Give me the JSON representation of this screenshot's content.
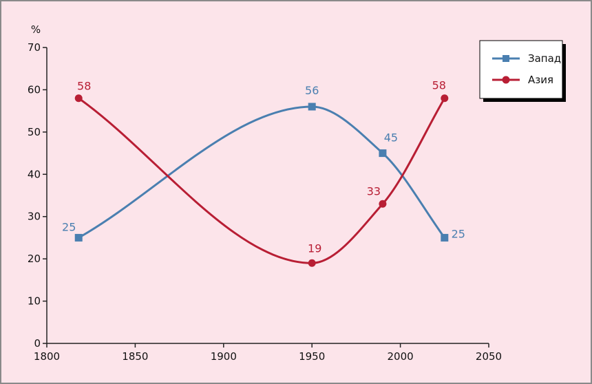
{
  "chart_data": {
    "type": "line",
    "ylabel": "%",
    "xlabel": "",
    "xlim": [
      1800,
      2050
    ],
    "ylim": [
      0,
      70
    ],
    "x_ticks": [
      1800,
      1850,
      1900,
      1950,
      2000,
      2050
    ],
    "y_ticks": [
      0,
      10,
      20,
      30,
      40,
      50,
      60,
      70
    ],
    "grid": false,
    "legend_position": "top-right",
    "series": [
      {
        "name": "Запад",
        "color": "#4a7fb0",
        "marker": "square",
        "x": [
          1818,
          1950,
          1990,
          2025
        ],
        "values": [
          25,
          56,
          45,
          25
        ],
        "labels": [
          "25",
          "56",
          "45",
          "25"
        ]
      },
      {
        "name": "Азия",
        "color": "#b81e34",
        "marker": "circle",
        "x": [
          1818,
          1950,
          1990,
          2025
        ],
        "values": [
          58,
          19,
          33,
          58
        ],
        "labels": [
          "58",
          "19",
          "33",
          "58"
        ]
      }
    ]
  }
}
